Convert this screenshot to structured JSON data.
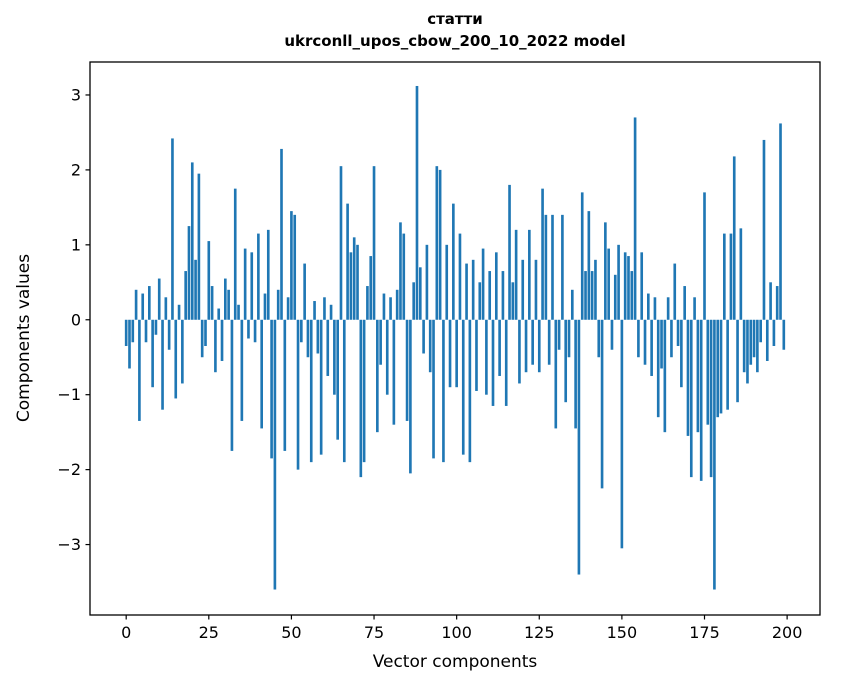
{
  "figure": {
    "title_line1": "статти",
    "title_line2": "ukrconll_upos_cbow_200_10_2022 model",
    "xlabel": "Vector components",
    "ylabel": "Components values"
  },
  "chart_data": {
    "type": "bar",
    "title": "статти — ukrconll_upos_cbow_200_10_2022 model",
    "xlabel": "Vector components",
    "ylabel": "Components values",
    "legend": "none",
    "grid": false,
    "bar_color": "#1f77b4",
    "spine_color": "#000000",
    "xlim": [
      -10.95,
      209.95
    ],
    "ylim": [
      -3.94,
      3.44
    ],
    "xticks": [
      0,
      25,
      50,
      75,
      100,
      125,
      150,
      175,
      200
    ],
    "xtick_labels": [
      "0",
      "25",
      "50",
      "75",
      "100",
      "125",
      "150",
      "175",
      "200"
    ],
    "yticks": [
      -3,
      -2,
      -1,
      0,
      1,
      2,
      3
    ],
    "ytick_labels": [
      "−3",
      "−2",
      "−1",
      "0",
      "1",
      "2",
      "3"
    ],
    "x_start": 0,
    "bar_width": 0.8,
    "values": [
      -0.35,
      -0.65,
      -0.3,
      0.4,
      -1.35,
      0.35,
      -0.3,
      0.45,
      -0.9,
      -0.2,
      0.55,
      -1.2,
      0.3,
      -0.4,
      2.42,
      -1.05,
      0.2,
      -0.85,
      0.65,
      1.25,
      2.1,
      0.8,
      1.95,
      -0.5,
      -0.35,
      1.05,
      0.45,
      -0.7,
      0.15,
      -0.55,
      0.55,
      0.4,
      -1.75,
      1.75,
      0.2,
      -1.35,
      0.95,
      -0.25,
      0.9,
      -0.3,
      1.15,
      -1.45,
      0.35,
      1.2,
      -1.85,
      -3.6,
      0.4,
      2.28,
      -1.75,
      0.3,
      1.45,
      1.4,
      -2.0,
      -0.3,
      0.75,
      -0.5,
      -1.9,
      0.25,
      -0.45,
      -1.8,
      0.3,
      -0.75,
      0.2,
      -1.0,
      -1.6,
      2.05,
      -1.9,
      1.55,
      0.9,
      1.1,
      1.0,
      -2.1,
      -1.9,
      0.45,
      0.85,
      2.05,
      -1.5,
      -0.6,
      0.35,
      -1.0,
      0.3,
      -1.4,
      0.4,
      1.3,
      1.15,
      -1.35,
      -2.05,
      0.5,
      3.12,
      0.7,
      -0.45,
      1.0,
      -0.7,
      -1.85,
      2.05,
      2.0,
      -1.9,
      1.0,
      -0.9,
      1.55,
      -0.9,
      1.15,
      -1.8,
      0.75,
      -1.9,
      0.8,
      -0.95,
      0.5,
      0.95,
      -1.0,
      0.65,
      -1.15,
      0.9,
      -0.75,
      0.65,
      -1.15,
      1.8,
      0.5,
      1.2,
      -0.85,
      0.8,
      -0.7,
      1.2,
      -0.6,
      0.8,
      -0.7,
      1.75,
      1.4,
      -0.6,
      1.4,
      -1.45,
      -0.4,
      1.4,
      -1.1,
      -0.5,
      0.4,
      -1.45,
      -3.4,
      1.7,
      0.65,
      1.45,
      0.65,
      0.8,
      -0.5,
      -2.25,
      1.3,
      0.95,
      -0.4,
      0.6,
      1.0,
      -3.05,
      0.9,
      0.85,
      0.65,
      2.7,
      -0.5,
      0.9,
      -0.6,
      0.35,
      -0.75,
      0.3,
      -1.3,
      -0.65,
      -1.5,
      0.3,
      -0.5,
      0.75,
      -0.35,
      -0.9,
      0.45,
      -1.55,
      -2.1,
      0.3,
      -1.5,
      -2.15,
      1.7,
      -1.4,
      -2.1,
      -3.6,
      -1.3,
      -1.25,
      1.15,
      -1.2,
      1.15,
      2.18,
      -1.1,
      1.22,
      -0.7,
      -0.85,
      -0.6,
      -0.5,
      -0.7,
      -0.3,
      2.4,
      -0.55,
      0.5,
      -0.35,
      0.45,
      2.62,
      -0.4
    ]
  }
}
